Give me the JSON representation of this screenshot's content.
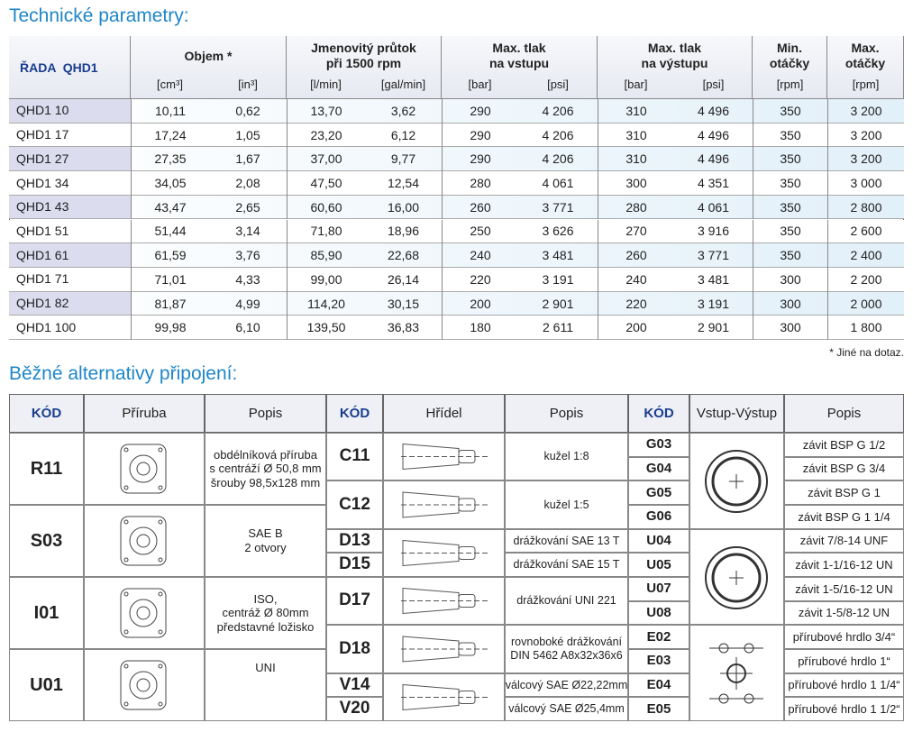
{
  "title": "Technické parametry:",
  "table": {
    "series_label": "ŘADA  QHD1",
    "groups": [
      {
        "title": [
          "Objem *"
        ],
        "units": [
          "[cm³]",
          "[in³]"
        ]
      },
      {
        "title": [
          "Jmenovitý průtok",
          "při 1500 rpm"
        ],
        "units": [
          "[l/min]",
          "[gal/min]"
        ]
      },
      {
        "title": [
          "Max. tlak",
          "na vstupu"
        ],
        "units": [
          "[bar]",
          "[psi]"
        ]
      },
      {
        "title": [
          "Max. tlak",
          "na výstupu"
        ],
        "units": [
          "[bar]",
          "[psi]"
        ]
      },
      {
        "title": [
          "Min.",
          "otáčky"
        ],
        "units": [
          "[rpm]"
        ]
      },
      {
        "title": [
          "Max.",
          "otáčky"
        ],
        "units": [
          "[rpm]"
        ]
      }
    ],
    "rows": [
      [
        "QHD1 10",
        "10,11",
        "0,62",
        "13,70",
        "3,62",
        "290",
        "4 206",
        "310",
        "4 496",
        "350",
        "3 200"
      ],
      [
        "QHD1 17",
        "17,24",
        "1,05",
        "23,20",
        "6,12",
        "290",
        "4 206",
        "310",
        "4 496",
        "350",
        "3 200"
      ],
      [
        "QHD1 27",
        "27,35",
        "1,67",
        "37,00",
        "9,77",
        "290",
        "4 206",
        "310",
        "4 496",
        "350",
        "3 200"
      ],
      [
        "QHD1 34",
        "34,05",
        "2,08",
        "47,50",
        "12,54",
        "280",
        "4 061",
        "300",
        "4 351",
        "350",
        "3 000"
      ],
      [
        "QHD1 43",
        "43,47",
        "2,65",
        "60,60",
        "16,00",
        "260",
        "3 771",
        "280",
        "4 061",
        "350",
        "2 800"
      ],
      [
        "QHD1 51",
        "51,44",
        "3,14",
        "71,80",
        "18,96",
        "250",
        "3 626",
        "270",
        "3 916",
        "350",
        "2 600"
      ],
      [
        "QHD1 61",
        "61,59",
        "3,76",
        "85,90",
        "22,68",
        "240",
        "3 481",
        "260",
        "3 771",
        "350",
        "2 400"
      ],
      [
        "QHD1 71",
        "71,01",
        "4,33",
        "99,00",
        "26,14",
        "220",
        "3 191",
        "240",
        "3 481",
        "300",
        "2 200"
      ],
      [
        "QHD1 82",
        "81,87",
        "4,99",
        "114,20",
        "30,15",
        "200",
        "2 901",
        "220",
        "3 191",
        "300",
        "2 000"
      ],
      [
        "QHD1 100",
        "99,98",
        "6,10",
        "139,50",
        "36,83",
        "180",
        "2 611",
        "200",
        "2 901",
        "300",
        "1 800"
      ]
    ]
  },
  "footnote": "* Jiné na dotaz.",
  "title2": "Běžné alternativy připojení:",
  "connections": {
    "headers": [
      "KÓD",
      "Příruba",
      "Popis",
      "KÓD",
      "Hřídel",
      "Popis",
      "KÓD",
      "Vstup-Výstup",
      "Popis"
    ],
    "flanges": [
      {
        "code": "R11",
        "description": [
          "obdélníková příruba",
          "s centráží Ø 50,8 mm",
          "šrouby 98,5x128 mm"
        ]
      },
      {
        "code": "S03",
        "description": [
          "SAE B",
          "2 otvory"
        ]
      },
      {
        "code": "I01",
        "description": [
          "ISO,",
          "centráž Ø 80mm",
          "představné ložisko"
        ]
      },
      {
        "code": "U01",
        "description": [
          "UNI"
        ]
      }
    ],
    "shafts": [
      {
        "code": "C11",
        "description": [
          "kužel 1:8"
        ]
      },
      {
        "code": "C12",
        "description": [
          "kužel 1:5"
        ]
      },
      {
        "code": "D13",
        "description": [
          "drážkování SAE 13 T"
        ]
      },
      {
        "code": "D15",
        "description": [
          "drážkování SAE 15 T"
        ]
      },
      {
        "code": "D17",
        "description": [
          "drážkování UNI 221"
        ]
      },
      {
        "code": "D18",
        "description": [
          "rovnoboké drážkování",
          "DIN 5462 A8x32x36x6"
        ]
      },
      {
        "code": "V14",
        "description": [
          "válcový SAE Ø22,22mm"
        ]
      },
      {
        "code": "V20",
        "description": [
          "válcový SAE Ø25,4mm"
        ]
      }
    ],
    "ports": [
      {
        "code": "G03",
        "description": "závit BSP G 1/2"
      },
      {
        "code": "G04",
        "description": "závit BSP G 3/4"
      },
      {
        "code": "G05",
        "description": "závit BSP G 1"
      },
      {
        "code": "G06",
        "description": "závit BSP G 1 1/4"
      },
      {
        "code": "U04",
        "description": "závit 7/8-14 UNF"
      },
      {
        "code": "U05",
        "description": "závit 1-1/16-12 UN"
      },
      {
        "code": "U07",
        "description": "závit 1-5/16-12 UN"
      },
      {
        "code": "U08",
        "description": "závit 1-5/8-12 UN"
      },
      {
        "code": "E02",
        "description": "přírubové hrdlo 3/4“"
      },
      {
        "code": "E03",
        "description": "přírubové hrdlo 1“"
      },
      {
        "code": "E04",
        "description": "přírubové hrdlo 1 1/4“"
      },
      {
        "code": "E05",
        "description": "přírubové hrdlo 1 1/2“"
      }
    ]
  }
}
